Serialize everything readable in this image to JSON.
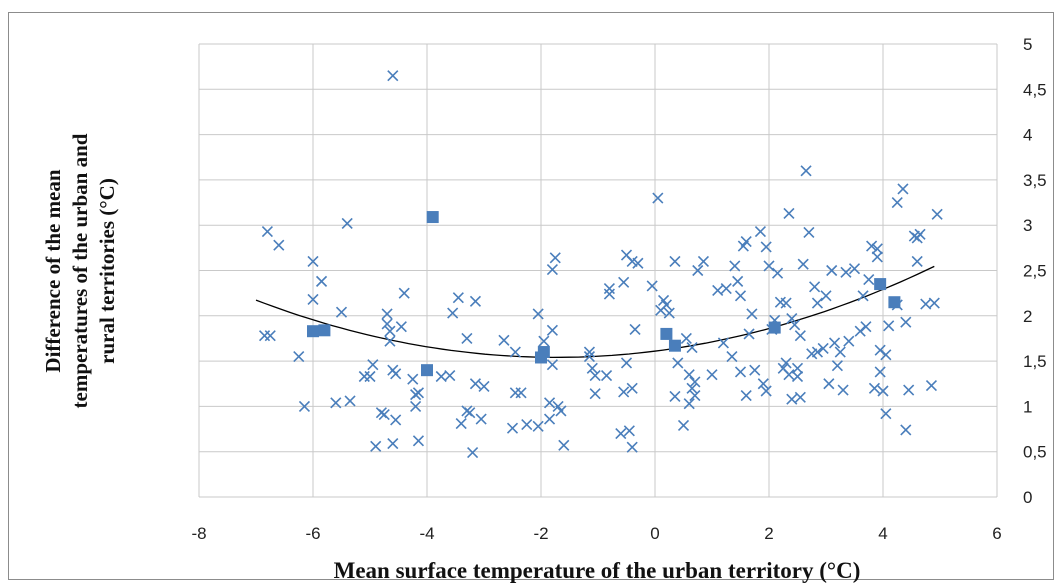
{
  "chart_data": {
    "type": "scatter",
    "title": "",
    "xlabel": "Mean surface temperature of the urban territory (°C)",
    "ylabel_lines": [
      "Difference of the mean",
      "temperatures of the urban and",
      "rural territories (°C)"
    ],
    "xlim": [
      -8,
      6
    ],
    "ylim": [
      0,
      5
    ],
    "x_ticks": [
      -8,
      -6,
      -4,
      -2,
      0,
      2,
      4,
      6
    ],
    "y_ticks": [
      {
        "value": 0,
        "label": "0"
      },
      {
        "value": 0.5,
        "label": "0,5"
      },
      {
        "value": 1,
        "label": "1"
      },
      {
        "value": 1.5,
        "label": "1,5"
      },
      {
        "value": 2,
        "label": "2"
      },
      {
        "value": 2.5,
        "label": "2,5"
      },
      {
        "value": 3,
        "label": "3"
      },
      {
        "value": 3.5,
        "label": "3,5"
      },
      {
        "value": 4,
        "label": "4"
      },
      {
        "value": 4.5,
        "label": "4,5"
      },
      {
        "value": 5,
        "label": "5"
      }
    ],
    "y_axis_side": "right",
    "grid": true,
    "colors": {
      "marker": "#4a7ebb",
      "trend": "#000000",
      "grid": "#c9c9c9",
      "frame": "#8c8c8c"
    },
    "series": [
      {
        "marker": "x",
        "points": [
          [
            -6.8,
            2.93
          ],
          [
            -6.85,
            1.78
          ],
          [
            -6.75,
            1.78
          ],
          [
            -6.6,
            2.78
          ],
          [
            -6.25,
            1.55
          ],
          [
            -6.15,
            1.0
          ],
          [
            -6.0,
            2.6
          ],
          [
            -6.0,
            2.18
          ],
          [
            -5.85,
            2.38
          ],
          [
            -5.6,
            1.04
          ],
          [
            -5.5,
            2.04
          ],
          [
            -5.4,
            3.02
          ],
          [
            -5.35,
            1.06
          ],
          [
            -5.1,
            1.33
          ],
          [
            -5.0,
            1.33
          ],
          [
            -4.95,
            1.46
          ],
          [
            -4.9,
            0.56
          ],
          [
            -4.8,
            0.93
          ],
          [
            -4.75,
            0.91
          ],
          [
            -4.7,
            2.02
          ],
          [
            -4.7,
            1.91
          ],
          [
            -4.65,
            1.83
          ],
          [
            -4.65,
            1.72
          ],
          [
            -4.6,
            0.59
          ],
          [
            -4.6,
            1.4
          ],
          [
            -4.6,
            4.65
          ],
          [
            -4.55,
            0.85
          ],
          [
            -4.55,
            1.36
          ],
          [
            -4.45,
            1.88
          ],
          [
            -4.4,
            2.25
          ],
          [
            -4.25,
            1.3
          ],
          [
            -4.2,
            1.13
          ],
          [
            -4.2,
            1.0
          ],
          [
            -4.15,
            0.62
          ],
          [
            -4.15,
            1.15
          ],
          [
            -3.75,
            1.33
          ],
          [
            -3.6,
            1.34
          ],
          [
            -3.55,
            2.03
          ],
          [
            -3.45,
            2.2
          ],
          [
            -3.4,
            0.81
          ],
          [
            -3.3,
            1.75
          ],
          [
            -3.3,
            0.95
          ],
          [
            -3.25,
            0.93
          ],
          [
            -3.2,
            0.49
          ],
          [
            -3.15,
            2.16
          ],
          [
            -3.15,
            1.25
          ],
          [
            -3.05,
            0.86
          ],
          [
            -3.0,
            1.22
          ],
          [
            -2.65,
            1.73
          ],
          [
            -2.5,
            0.76
          ],
          [
            -2.45,
            1.15
          ],
          [
            -2.45,
            1.6
          ],
          [
            -2.35,
            1.15
          ],
          [
            -2.25,
            0.8
          ],
          [
            -2.05,
            0.78
          ],
          [
            -2.05,
            2.02
          ],
          [
            -1.95,
            1.72
          ],
          [
            -1.85,
            1.04
          ],
          [
            -1.85,
            0.86
          ],
          [
            -1.8,
            1.46
          ],
          [
            -1.8,
            1.84
          ],
          [
            -1.8,
            2.51
          ],
          [
            -1.75,
            2.64
          ],
          [
            -1.7,
            1.0
          ],
          [
            -1.65,
            0.95
          ],
          [
            -1.6,
            0.57
          ],
          [
            -1.15,
            1.6
          ],
          [
            -1.15,
            1.55
          ],
          [
            -1.1,
            1.42
          ],
          [
            -1.05,
            1.34
          ],
          [
            -1.05,
            1.14
          ],
          [
            -0.85,
            1.34
          ],
          [
            -0.8,
            2.3
          ],
          [
            -0.8,
            2.24
          ],
          [
            -0.6,
            0.7
          ],
          [
            -0.55,
            2.37
          ],
          [
            -0.55,
            1.16
          ],
          [
            -0.5,
            2.67
          ],
          [
            -0.5,
            1.48
          ],
          [
            -0.45,
            0.73
          ],
          [
            -0.4,
            2.6
          ],
          [
            -0.4,
            1.2
          ],
          [
            -0.4,
            0.55
          ],
          [
            -0.35,
            1.85
          ],
          [
            -0.3,
            2.58
          ],
          [
            -0.05,
            2.33
          ],
          [
            0.05,
            3.3
          ],
          [
            0.1,
            2.06
          ],
          [
            0.15,
            2.17
          ],
          [
            0.2,
            2.12
          ],
          [
            0.25,
            2.03
          ],
          [
            0.35,
            2.6
          ],
          [
            0.35,
            1.11
          ],
          [
            0.4,
            1.48
          ],
          [
            0.5,
            0.79
          ],
          [
            0.55,
            1.75
          ],
          [
            0.6,
            1.35
          ],
          [
            0.6,
            1.03
          ],
          [
            0.65,
            1.65
          ],
          [
            0.65,
            1.2
          ],
          [
            0.7,
            1.27
          ],
          [
            0.7,
            1.12
          ],
          [
            0.75,
            2.5
          ],
          [
            0.85,
            2.6
          ],
          [
            1.0,
            1.35
          ],
          [
            1.1,
            2.28
          ],
          [
            1.2,
            1.7
          ],
          [
            1.25,
            2.3
          ],
          [
            1.35,
            1.55
          ],
          [
            1.4,
            2.55
          ],
          [
            1.45,
            2.38
          ],
          [
            1.5,
            2.22
          ],
          [
            1.5,
            1.38
          ],
          [
            1.55,
            2.77
          ],
          [
            1.6,
            1.12
          ],
          [
            1.6,
            2.82
          ],
          [
            1.65,
            1.8
          ],
          [
            1.7,
            2.02
          ],
          [
            1.75,
            1.4
          ],
          [
            1.85,
            2.93
          ],
          [
            1.9,
            1.25
          ],
          [
            1.95,
            1.17
          ],
          [
            1.95,
            2.76
          ],
          [
            2.0,
            2.55
          ],
          [
            2.05,
            1.85
          ],
          [
            2.1,
            1.95
          ],
          [
            2.15,
            2.47
          ],
          [
            2.2,
            2.15
          ],
          [
            2.25,
            1.42
          ],
          [
            2.3,
            2.14
          ],
          [
            2.3,
            1.48
          ],
          [
            2.35,
            1.35
          ],
          [
            2.35,
            3.13
          ],
          [
            2.4,
            1.08
          ],
          [
            2.4,
            1.97
          ],
          [
            2.45,
            1.9
          ],
          [
            2.5,
            1.42
          ],
          [
            2.5,
            1.33
          ],
          [
            2.55,
            1.1
          ],
          [
            2.55,
            1.78
          ],
          [
            2.6,
            2.57
          ],
          [
            2.65,
            3.6
          ],
          [
            2.7,
            2.92
          ],
          [
            2.75,
            1.58
          ],
          [
            2.8,
            2.32
          ],
          [
            2.85,
            1.6
          ],
          [
            2.85,
            2.14
          ],
          [
            2.95,
            1.64
          ],
          [
            3.0,
            2.22
          ],
          [
            3.05,
            1.25
          ],
          [
            3.1,
            2.5
          ],
          [
            3.15,
            1.7
          ],
          [
            3.2,
            1.45
          ],
          [
            3.25,
            1.6
          ],
          [
            3.3,
            1.18
          ],
          [
            3.35,
            2.48
          ],
          [
            3.4,
            1.72
          ],
          [
            3.5,
            2.52
          ],
          [
            3.6,
            1.83
          ],
          [
            3.65,
            2.22
          ],
          [
            3.7,
            1.88
          ],
          [
            3.75,
            2.4
          ],
          [
            3.8,
            2.77
          ],
          [
            3.85,
            1.2
          ],
          [
            3.9,
            2.65
          ],
          [
            3.9,
            2.74
          ],
          [
            3.95,
            1.62
          ],
          [
            3.95,
            1.38
          ],
          [
            4.0,
            1.17
          ],
          [
            4.05,
            0.92
          ],
          [
            4.05,
            1.57
          ],
          [
            4.1,
            1.89
          ],
          [
            4.25,
            2.12
          ],
          [
            4.25,
            3.25
          ],
          [
            4.35,
            3.4
          ],
          [
            4.4,
            1.93
          ],
          [
            4.45,
            1.18
          ],
          [
            4.4,
            0.74
          ],
          [
            4.55,
            2.88
          ],
          [
            4.6,
            2.6
          ],
          [
            4.6,
            2.86
          ],
          [
            4.65,
            2.9
          ],
          [
            4.75,
            2.13
          ],
          [
            4.85,
            1.23
          ],
          [
            4.9,
            2.14
          ],
          [
            4.95,
            3.12
          ]
        ]
      },
      {
        "marker": "square",
        "points": [
          [
            -6.0,
            1.83
          ],
          [
            -5.8,
            1.84
          ],
          [
            -3.9,
            3.09
          ],
          [
            -4.0,
            1.4
          ],
          [
            -2.0,
            1.54
          ],
          [
            -1.95,
            1.6
          ],
          [
            0.2,
            1.8
          ],
          [
            0.35,
            1.67
          ],
          [
            2.1,
            1.87
          ],
          [
            3.95,
            2.35
          ],
          [
            4.2,
            2.15
          ]
        ]
      }
    ],
    "trendline": {
      "type": "polynomial",
      "degree": 2,
      "coefficients": [
        0.0228,
        0.0792,
        1.61
      ],
      "x_range": [
        -7,
        4.9
      ]
    }
  }
}
